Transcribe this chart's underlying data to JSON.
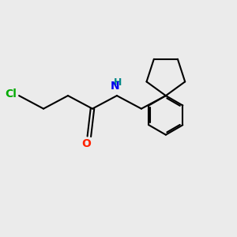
{
  "background_color": "#ebebeb",
  "bond_color": "#000000",
  "cl_color": "#00aa00",
  "o_color": "#ff2200",
  "n_color": "#0000ee",
  "nh_h_color": "#008888",
  "bond_width": 1.5,
  "figsize": [
    3.0,
    3.0
  ],
  "dpi": 100,
  "font_size": 10,
  "Cl": [
    0.85,
    4.55
  ],
  "C1": [
    1.6,
    4.15
  ],
  "C2": [
    2.35,
    4.55
  ],
  "C3": [
    3.1,
    4.15
  ],
  "O": [
    3.0,
    3.3
  ],
  "N": [
    3.85,
    4.55
  ],
  "C4": [
    4.6,
    4.15
  ],
  "CP": [
    5.35,
    4.55
  ],
  "cp_ring_r": 0.62,
  "ph_ring_r": 0.6,
  "xlim": [
    0.3,
    7.5
  ],
  "ylim": [
    1.2,
    6.5
  ]
}
